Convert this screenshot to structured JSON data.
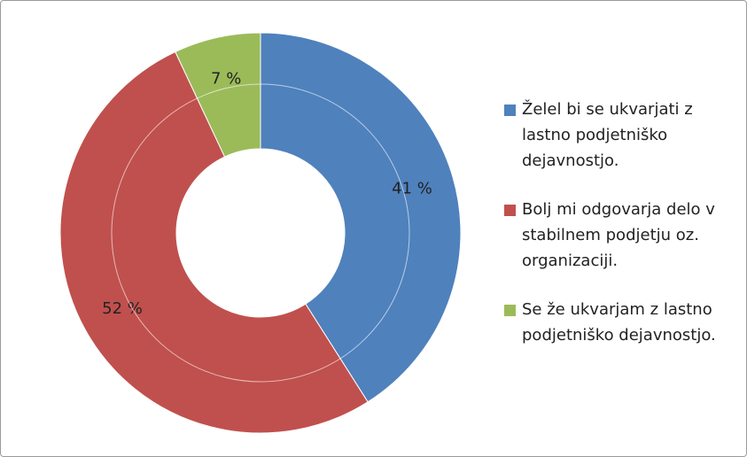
{
  "chart_data": {
    "type": "donut",
    "categories": [
      "Želel bi se ukvarjati z lastno podjetniško dejavnostjo.",
      "Bolj mi odgovarja delo v stabilnem podjetju oz. organizaciji.",
      "Se že ukvarjam z lastno podjetniško dejavnostjo."
    ],
    "values": [
      41,
      52,
      7
    ],
    "value_labels": [
      "41 %",
      "52 %",
      "7 %"
    ],
    "colors": [
      "#4f81bd",
      "#c0504d",
      "#9bbb59"
    ],
    "legend": "right"
  }
}
